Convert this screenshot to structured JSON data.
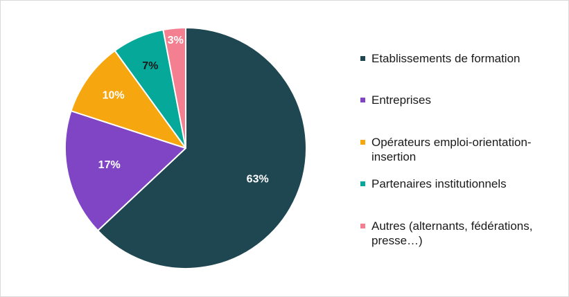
{
  "chart_data": {
    "type": "pie",
    "title": "",
    "start_angle_deg": 0,
    "direction": "clockwise",
    "legend_position": "right",
    "series": [
      {
        "name": "Etablissements de formation",
        "value": 63,
        "label": "63%",
        "color": "#1f4752",
        "label_color": "#ffffff"
      },
      {
        "name": "Entreprises",
        "value": 17,
        "label": "17%",
        "color": "#7f45c4",
        "label_color": "#ffffff"
      },
      {
        "name": "Opérateurs emploi-orientation-insertion",
        "value": 10,
        "label": "10%",
        "color": "#f6a710",
        "label_color": "#ffffff"
      },
      {
        "name": "Partenaires institutionnels",
        "value": 7,
        "label": "7%",
        "color": "#06a89a",
        "label_color": "#1a1a1a"
      },
      {
        "name": "Autres (alternants, fédérations, presse…)",
        "value": 3,
        "label": "3%",
        "color": "#f37f90",
        "label_color": "#ffffff"
      }
    ]
  },
  "legend": {
    "items": [
      {
        "label": "Etablissements de formation",
        "color": "#1f4752"
      },
      {
        "label": "Entreprises",
        "color": "#7f45c4"
      },
      {
        "label": "Opérateurs emploi-orientation-insertion",
        "color": "#f6a710"
      },
      {
        "label": "Partenaires institutionnels",
        "color": "#06a89a"
      },
      {
        "label": "Autres (alternants, fédérations, presse…)",
        "color": "#f37f90"
      }
    ]
  }
}
